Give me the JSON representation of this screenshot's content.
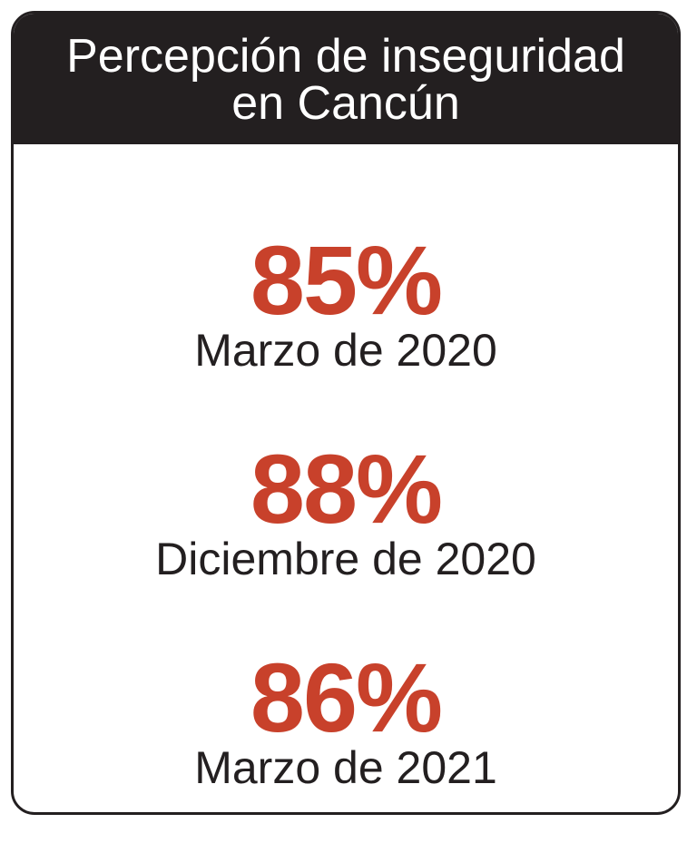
{
  "title": {
    "line1": "Percepción de inseguridad",
    "line2": "en Cancún"
  },
  "stats": [
    {
      "value": "85%",
      "label": "Marzo de 2020"
    },
    {
      "value": "88%",
      "label": "Diciembre de 2020"
    },
    {
      "value": "86%",
      "label": "Marzo de 2021"
    }
  ],
  "colors": {
    "header_bg": "#231f20",
    "value": "#c8412b",
    "label": "#231f20",
    "border": "#231f20"
  }
}
